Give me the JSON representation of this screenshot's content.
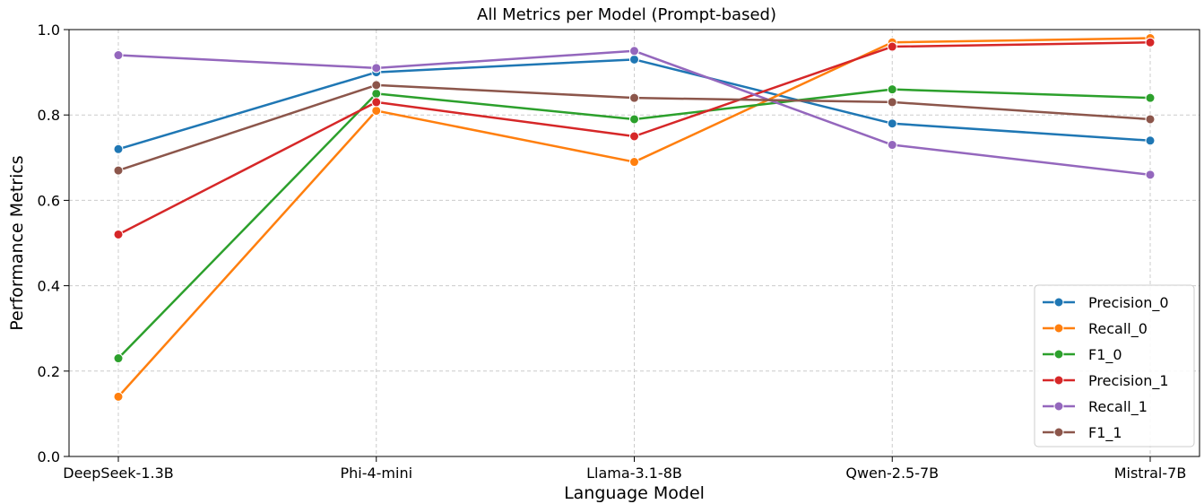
{
  "chart_data": {
    "type": "line",
    "title": "All Metrics per Model (Prompt-based)",
    "xlabel": "Language Model",
    "ylabel": "Performance Metrics",
    "categories": [
      "DeepSeek-1.3B",
      "Phi-4-mini",
      "Llama-3.1-8B",
      "Qwen-2.5-7B",
      "Mistral-7B"
    ],
    "ylim": [
      0.0,
      1.0
    ],
    "yticks": [
      "0.0",
      "0.2",
      "0.4",
      "0.6",
      "0.8",
      "1.0"
    ],
    "grid": true,
    "legend_position": "bottom-right",
    "series": [
      {
        "name": "Precision_0",
        "color": "#1f77b4",
        "values": [
          0.72,
          0.9,
          0.93,
          0.78,
          0.74
        ]
      },
      {
        "name": "Recall_0",
        "color": "#ff7f0e",
        "values": [
          0.14,
          0.81,
          0.69,
          0.97,
          0.98
        ]
      },
      {
        "name": "F1_0",
        "color": "#2ca02c",
        "values": [
          0.23,
          0.85,
          0.79,
          0.86,
          0.84
        ]
      },
      {
        "name": "Precision_1",
        "color": "#d62728",
        "values": [
          0.52,
          0.83,
          0.75,
          0.96,
          0.97
        ]
      },
      {
        "name": "Recall_1",
        "color": "#9467bd",
        "values": [
          0.94,
          0.91,
          0.95,
          0.73,
          0.66
        ]
      },
      {
        "name": "F1_1",
        "color": "#8c564b",
        "values": [
          0.67,
          0.87,
          0.84,
          0.83,
          0.79
        ]
      }
    ]
  }
}
